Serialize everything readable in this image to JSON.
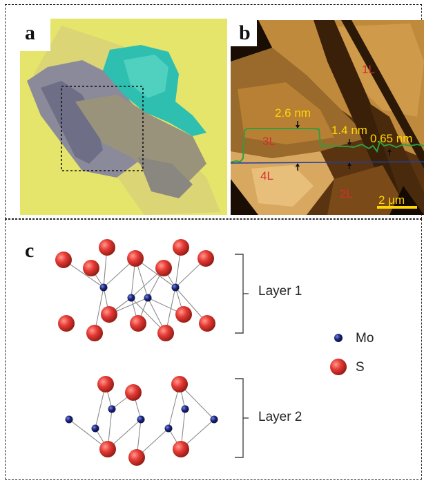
{
  "panel_a": {
    "label": "a"
  },
  "panel_b": {
    "label": "b",
    "layer_labels": {
      "one": "1L",
      "two": "2L",
      "three": "3L",
      "four": "4L"
    },
    "step_heights": {
      "first": "2.6 nm",
      "second": "1.4 nm",
      "third": "0.65 nm"
    },
    "scale_bar": "2 μm"
  },
  "panel_c": {
    "label": "c",
    "layers": {
      "top": "Layer 1",
      "bottom": "Layer 2"
    },
    "legend": {
      "mo": "Mo",
      "s": "S"
    }
  },
  "colors": {
    "mo_atom": "#1a237e",
    "s_atom": "#e53935",
    "afm_label_red": "#d32f2f",
    "afm_label_yellow": "#ffd600",
    "profile_line": "#2e9e3f",
    "baseline": "#1e40a0",
    "optical_bg": "#e4e56a",
    "flake_teal": "#2ebfb0"
  }
}
